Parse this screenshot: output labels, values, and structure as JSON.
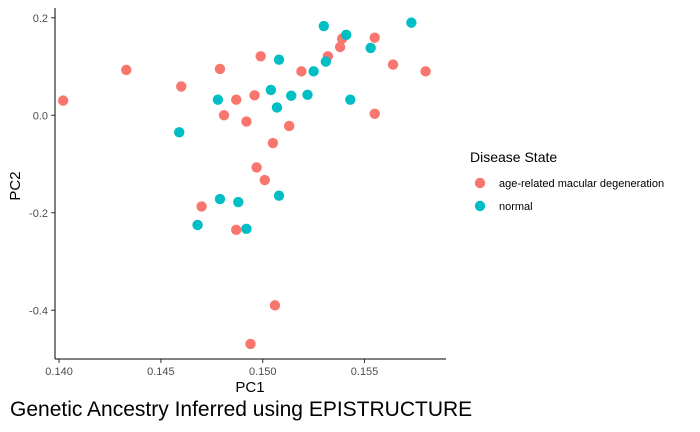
{
  "chart_data": {
    "type": "scatter",
    "title": "Genetic Ancestry Inferred using EPISTRUCTURE",
    "xlabel": "PC1",
    "ylabel": "PC2",
    "xlim": [
      0.1398,
      0.159
    ],
    "ylim": [
      -0.5,
      0.22
    ],
    "x_ticks": [
      0.14,
      0.145,
      0.15,
      0.155
    ],
    "x_tick_labels": [
      "0.140",
      "0.145",
      "0.150",
      "0.155"
    ],
    "y_ticks": [
      0.2,
      0.0,
      -0.2,
      -0.4
    ],
    "y_tick_labels": [
      "0.2",
      "0.0",
      "-0.2",
      "-0.4"
    ],
    "grid": false,
    "legend": {
      "title": "Disease State",
      "position": "right"
    },
    "series": [
      {
        "name": "age-related macular degeneration",
        "color": "#F8766D",
        "points": [
          [
            0.1402,
            0.03
          ],
          [
            0.1433,
            0.093
          ],
          [
            0.146,
            0.059
          ],
          [
            0.1479,
            0.095
          ],
          [
            0.1481,
            0.0
          ],
          [
            0.1487,
            0.032
          ],
          [
            0.1492,
            -0.013
          ],
          [
            0.1496,
            0.041
          ],
          [
            0.1499,
            0.121
          ],
          [
            0.1505,
            -0.057
          ],
          [
            0.1513,
            -0.022
          ],
          [
            0.1519,
            0.09
          ],
          [
            0.1532,
            0.121
          ],
          [
            0.1538,
            0.14
          ],
          [
            0.1539,
            0.157
          ],
          [
            0.1555,
            0.159
          ],
          [
            0.1555,
            0.003
          ],
          [
            0.1564,
            0.104
          ],
          [
            0.158,
            0.09
          ],
          [
            0.1497,
            -0.107
          ],
          [
            0.1501,
            -0.133
          ],
          [
            0.147,
            -0.187
          ],
          [
            0.1487,
            -0.235
          ],
          [
            0.1506,
            -0.39
          ],
          [
            0.1494,
            -0.469
          ]
        ]
      },
      {
        "name": "normal",
        "color": "#00BFC4",
        "points": [
          [
            0.1459,
            -0.035
          ],
          [
            0.1478,
            0.032
          ],
          [
            0.1479,
            -0.172
          ],
          [
            0.1468,
            -0.225
          ],
          [
            0.1488,
            -0.178
          ],
          [
            0.1492,
            -0.233
          ],
          [
            0.1504,
            0.052
          ],
          [
            0.1507,
            0.016
          ],
          [
            0.1508,
            0.114
          ],
          [
            0.1508,
            -0.165
          ],
          [
            0.1514,
            0.04
          ],
          [
            0.1522,
            0.042
          ],
          [
            0.1525,
            0.09
          ],
          [
            0.153,
            0.183
          ],
          [
            0.1531,
            0.11
          ],
          [
            0.1541,
            0.165
          ],
          [
            0.1543,
            0.032
          ],
          [
            0.1553,
            0.138
          ],
          [
            0.1573,
            0.19
          ]
        ]
      }
    ]
  }
}
